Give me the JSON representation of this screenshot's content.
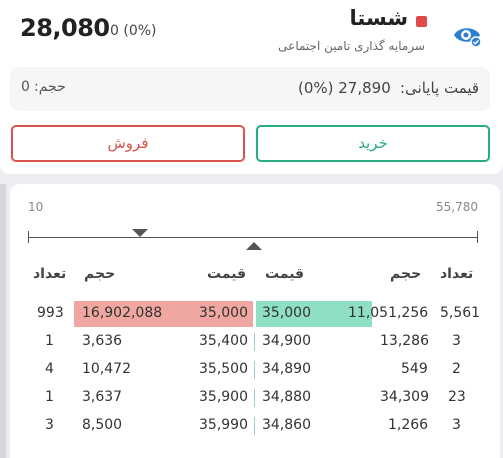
{
  "header": {
    "last_price": "28,080",
    "change": "0 (0%)",
    "symbol": "شستا",
    "company": "سرمایه گذاری تامین اجتماعی",
    "status_color": "#e14848",
    "watch_icon": "eye-icon"
  },
  "info": {
    "close_label": "قیمت پایانی:",
    "close_value": "(0%) 27,890",
    "volume_label": "حجم:",
    "volume_value": "0"
  },
  "actions": {
    "sell_label": "فروش",
    "buy_label": "خرید"
  },
  "range": {
    "min": "10",
    "max": "55,780"
  },
  "orderbook": {
    "headers": {
      "sell_count": "تعداد",
      "sell_volume": "حجم",
      "sell_price": "قیمت",
      "buy_price": "قیمت",
      "buy_volume": "حجم",
      "buy_count": "تعداد"
    },
    "rows": [
      {
        "sell_count": "993",
        "sell_volume": "16,902,088",
        "sell_price": "35,000",
        "buy_price": "35,000",
        "buy_volume": "11,051,256",
        "buy_count": "5,561"
      },
      {
        "sell_count": "1",
        "sell_volume": "3,636",
        "sell_price": "35,400",
        "buy_price": "34,900",
        "buy_volume": "13,286",
        "buy_count": "3"
      },
      {
        "sell_count": "4",
        "sell_volume": "10,472",
        "sell_price": "35,500",
        "buy_price": "34,890",
        "buy_volume": "549",
        "buy_count": "2"
      },
      {
        "sell_count": "1",
        "sell_volume": "3,637",
        "sell_price": "35,900",
        "buy_price": "34,880",
        "buy_volume": "34,309",
        "buy_count": "23"
      },
      {
        "sell_count": "3",
        "sell_volume": "8,500",
        "sell_price": "35,990",
        "buy_price": "34,860",
        "buy_volume": "1,266",
        "buy_count": "3"
      }
    ],
    "sell_color": "#f0a7a2",
    "buy_color": "#8fe0c2"
  }
}
